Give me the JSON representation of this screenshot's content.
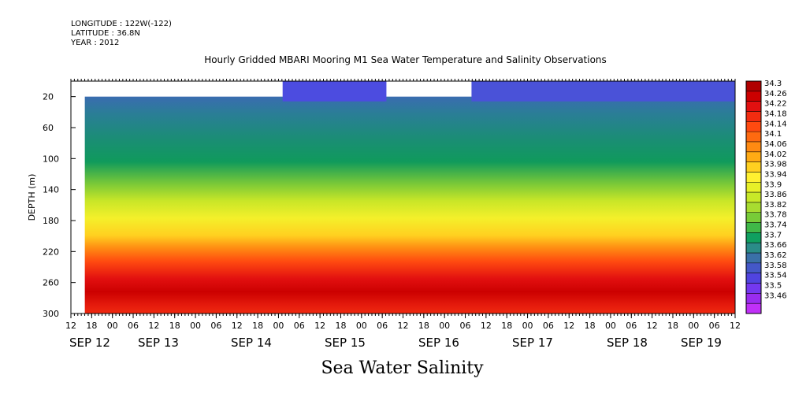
{
  "header": {
    "longitude": "LONGITUDE : 122W(-122)",
    "latitude": "LATITUDE : 36.8N",
    "year": "YEAR : 2012"
  },
  "chart_data": {
    "type": "heatmap",
    "title": "Hourly Gridded MBARI Mooring M1 Sea Water Temperature and Salinity Observations",
    "footer_label": "Sea Water Salinity",
    "ylabel": "DEPTH (m)",
    "y_axis": {
      "ticks": [
        20,
        60,
        100,
        140,
        180,
        220,
        260,
        300
      ],
      "range": [
        0,
        300
      ],
      "inverted": true
    },
    "x_axis": {
      "hour_ticks": [
        "12",
        "18",
        "00",
        "06",
        "12",
        "18",
        "00",
        "06",
        "12",
        "18",
        "00",
        "06",
        "12",
        "18",
        "00",
        "06",
        "12",
        "18",
        "00",
        "06",
        "12",
        "18",
        "00",
        "06",
        "12",
        "18",
        "00",
        "06",
        "12",
        "18",
        "00",
        "06",
        "12"
      ],
      "day_labels": [
        "SEP 12",
        "SEP 13",
        "SEP 14",
        "SEP 15",
        "SEP 16",
        "SEP 17",
        "SEP 18",
        "SEP 19"
      ]
    },
    "colorbar": {
      "levels": [
        "34.3",
        "34.26",
        "34.22",
        "34.18",
        "34.14",
        "34.1",
        "34.06",
        "34.02",
        "33.98",
        "33.94",
        "33.9",
        "33.86",
        "33.82",
        "33.78",
        "33.74",
        "33.7",
        "33.66",
        "33.62",
        "33.58",
        "33.54",
        "33.5",
        "33.46"
      ],
      "colors": [
        "#b00000",
        "#cc0000",
        "#e21010",
        "#f22c10",
        "#ff4a10",
        "#ff6a10",
        "#ff8a12",
        "#ffaa14",
        "#ffd020",
        "#fff030",
        "#e8f028",
        "#c8e828",
        "#a8dc30",
        "#78cc38",
        "#40b848",
        "#10a060",
        "#2a8c88",
        "#3a70a8",
        "#4458c8",
        "#5044e0",
        "#7438f0",
        "#9a2cf0",
        "#c030f8"
      ]
    },
    "profile": [
      {
        "depth": 20,
        "salinity": 33.6
      },
      {
        "depth": 60,
        "salinity": 33.66
      },
      {
        "depth": 100,
        "salinity": 33.72
      },
      {
        "depth": 140,
        "salinity": 33.86
      },
      {
        "depth": 180,
        "salinity": 33.98
      },
      {
        "depth": 220,
        "salinity": 34.14
      },
      {
        "depth": 260,
        "salinity": 34.26
      },
      {
        "depth": 300,
        "salinity": 34.2
      }
    ]
  }
}
